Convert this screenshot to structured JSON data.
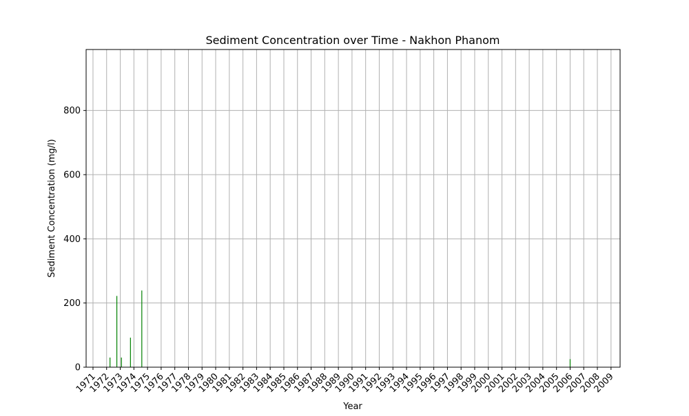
{
  "chart_data": {
    "type": "bar",
    "title": "Sediment Concentration over Time - Nakhon Phanom",
    "xlabel": "Year",
    "ylabel": "Sediment Concentration (mg/l)",
    "x_tick_labels": [
      "1971",
      "1972",
      "1973",
      "1974",
      "1975",
      "1976",
      "1977",
      "1978",
      "1979",
      "1980",
      "1981",
      "1982",
      "1983",
      "1984",
      "1985",
      "1986",
      "1987",
      "1988",
      "1989",
      "1990",
      "1991",
      "1992",
      "1993",
      "1994",
      "1995",
      "1996",
      "1997",
      "1998",
      "1999",
      "2000",
      "2001",
      "2002",
      "2003",
      "2004",
      "2005",
      "2006",
      "2007",
      "2008",
      "2009"
    ],
    "y_ticks": [
      0,
      200,
      400,
      600,
      800
    ],
    "ylim": [
      0,
      990
    ],
    "xlim": [
      "1970-07-01",
      "2009-09-01"
    ],
    "grid": true,
    "bar_color": "#008000",
    "points": [
      {
        "date": "1972-04-01",
        "value": 30
      },
      {
        "date": "1972-10-01",
        "value": 222
      },
      {
        "date": "1973-02-01",
        "value": 30
      },
      {
        "date": "1973-10-01",
        "value": 92
      },
      {
        "date": "1974-08-01",
        "value": 239
      },
      {
        "date": "2006-01-01",
        "value": 25
      }
    ]
  }
}
